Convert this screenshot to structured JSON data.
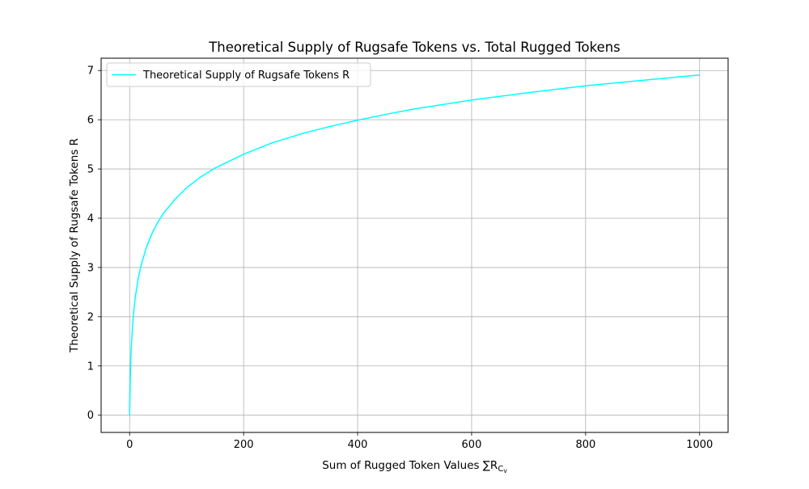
{
  "chart_data": {
    "type": "line",
    "title": "Theoretical Supply of Rugsafe Tokens vs. Total Rugged Tokens",
    "xlabel": "Sum of Rugged Token Values ∑R",
    "xlabel_sub": "C",
    "xlabel_subsub": "v",
    "ylabel": "Theoretical Supply of Rugsafe Tokens R",
    "xlim": [
      -50,
      1050
    ],
    "ylim": [
      -0.35,
      7.25
    ],
    "xticks": [
      0,
      200,
      400,
      600,
      800,
      1000
    ],
    "yticks": [
      0,
      1,
      2,
      3,
      4,
      5,
      6,
      7
    ],
    "grid": true,
    "legend_position": "top-left",
    "series": [
      {
        "name": "Theoretical Supply of Rugsafe Tokens R",
        "color": "#00ffff",
        "x": [
          0,
          1,
          2,
          3,
          5,
          7,
          10,
          15,
          20,
          30,
          40,
          50,
          60,
          80,
          100,
          125,
          150,
          200,
          250,
          300,
          350,
          400,
          450,
          500,
          600,
          700,
          800,
          900,
          1000
        ],
        "y": [
          0,
          0.69,
          1.1,
          1.39,
          1.79,
          2.08,
          2.4,
          2.77,
          3.04,
          3.43,
          3.71,
          3.93,
          4.11,
          4.39,
          4.62,
          4.84,
          5.02,
          5.3,
          5.53,
          5.71,
          5.86,
          5.99,
          6.11,
          6.22,
          6.4,
          6.55,
          6.69,
          6.8,
          6.91
        ]
      }
    ]
  }
}
